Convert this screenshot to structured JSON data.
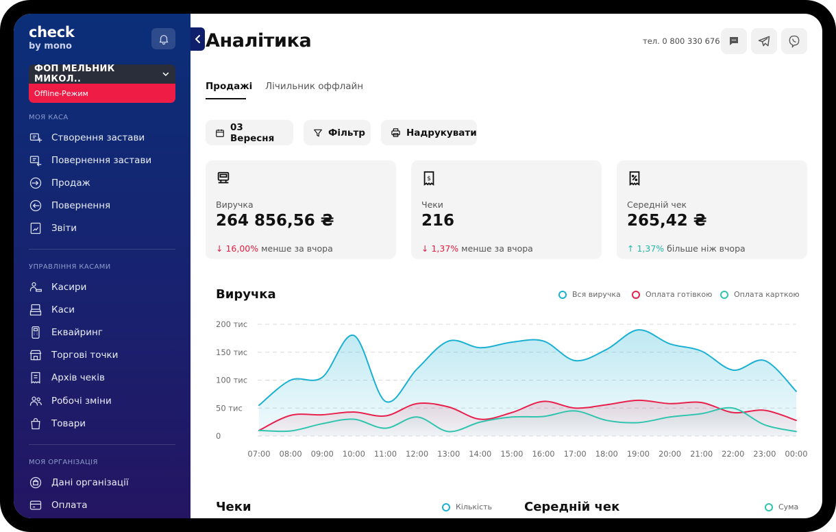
{
  "app": {
    "logo_main": "check",
    "logo_sub": "by mono"
  },
  "account": {
    "name": "ФОП МЕЛЬНИК МИКОЛ..",
    "status": "Offline-Режим"
  },
  "sidebar": {
    "sections": [
      {
        "title": "МОЯ КАСА",
        "items": [
          {
            "label": "Створення застави",
            "icon": "deposit-create-icon"
          },
          {
            "label": "Повернення застави",
            "icon": "deposit-return-icon"
          },
          {
            "label": "Продаж",
            "icon": "sale-icon"
          },
          {
            "label": "Повернення",
            "icon": "return-icon"
          },
          {
            "label": "Звіти",
            "icon": "reports-icon"
          }
        ]
      },
      {
        "title": "УПРАВЛІННЯ КАСАМИ",
        "items": [
          {
            "label": "Касири",
            "icon": "cashiers-icon"
          },
          {
            "label": "Каси",
            "icon": "registers-icon"
          },
          {
            "label": "Еквайринг",
            "icon": "acquiring-icon"
          },
          {
            "label": "Торгові точки",
            "icon": "store-icon"
          },
          {
            "label": "Архів чеків",
            "icon": "receipts-archive-icon"
          },
          {
            "label": "Робочі зміни",
            "icon": "shifts-icon"
          },
          {
            "label": "Товари",
            "icon": "products-icon"
          }
        ]
      },
      {
        "title": "МОЯ ОРГАНІЗАЦІЯ",
        "items": [
          {
            "label": "Дані організації",
            "icon": "organization-icon"
          },
          {
            "label": "Оплата",
            "icon": "payment-card-icon"
          }
        ]
      }
    ]
  },
  "header": {
    "title": "Аналітика",
    "phone": "тел. 0 800 330 676"
  },
  "tabs": [
    {
      "label": "Продажі",
      "active": true
    },
    {
      "label": "Лічильник оффлайн",
      "active": false
    }
  ],
  "actions": {
    "date": "03 Вересня",
    "filter": "Фільтр",
    "print": "Надрукувати"
  },
  "kpis": [
    {
      "label": "Виручка",
      "value": "264 856,56 ₴",
      "delta": "16,00%",
      "direction": "down",
      "delta_text": "менше за вчора",
      "icon": "cash-register-icon"
    },
    {
      "label": "Чеки",
      "value": "216",
      "delta": "1,37%",
      "direction": "down",
      "delta_text": "менше за вчора",
      "icon": "receipt-icon"
    },
    {
      "label": "Середній чек",
      "value": "265,42 ₴",
      "delta": "1,37%",
      "direction": "up",
      "delta_text": "більше ніж вчора",
      "icon": "receipt-percent-icon"
    }
  ],
  "colors": {
    "total": "#1ab0d2",
    "cash": "#e8204b",
    "card": "#2fc4ae",
    "down": "#e31b3e",
    "up": "#23b7a7"
  },
  "chart_data": {
    "type": "area",
    "title": "Виручка",
    "y_ticks": [
      "200 тис",
      "150 тис",
      "100 тис",
      "50 тис",
      "0"
    ],
    "ylim": [
      0,
      200000
    ],
    "grid": true,
    "legend_position": "top-right",
    "x": [
      "07:00",
      "08:00",
      "09:00",
      "10:00",
      "11:00",
      "12:00",
      "13:00",
      "14:00",
      "15:00",
      "16:00",
      "17:00",
      "18:00",
      "19:00",
      "20:00",
      "21:00",
      "22:00",
      "23:00",
      "00:00"
    ],
    "series": [
      {
        "name": "Вся виручка",
        "values": [
          55000,
          100000,
          105000,
          180000,
          62000,
          120000,
          170000,
          158000,
          168000,
          170000,
          135000,
          155000,
          190000,
          165000,
          152000,
          118000,
          135000,
          80000
        ]
      },
      {
        "name": "Оплата готівкою",
        "values": [
          10000,
          37000,
          38000,
          43000,
          36000,
          58000,
          52000,
          30000,
          42000,
          62000,
          50000,
          56000,
          64000,
          58000,
          60000,
          42000,
          46000,
          28000
        ]
      },
      {
        "name": "Оплата карткою",
        "values": [
          10000,
          9000,
          22000,
          30000,
          14000,
          34000,
          8000,
          25000,
          34000,
          35000,
          45000,
          28000,
          24000,
          34000,
          40000,
          50000,
          20000,
          8000
        ]
      }
    ]
  },
  "secondary_charts": {
    "receipts_title": "Чеки",
    "receipts_legend": "Кількість",
    "avg_title": "Середній чек",
    "avg_legend": "Сума"
  }
}
